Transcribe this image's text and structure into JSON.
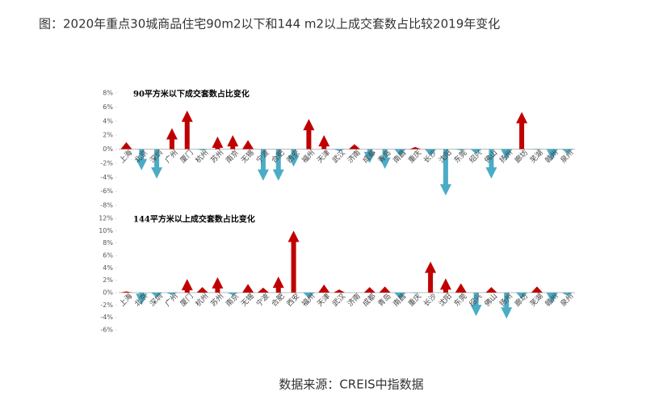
{
  "title": "图：2020年重点30城商品住宅90m2以下和144 m2以上成交套数占比较2019年变化",
  "source": "数据来源：CREIS中指数据",
  "chart_data": [
    {
      "type": "bar",
      "title": "90平方米以下成交套数占比变化",
      "categories": [
        "上海",
        "北京",
        "深圳",
        "广州",
        "厦门",
        "杭州",
        "苏州",
        "南京",
        "无锡",
        "宁波",
        "合肥",
        "西安",
        "福州",
        "天津",
        "武汉",
        "济南",
        "成都",
        "青岛",
        "南昌",
        "重庆",
        "长沙",
        "沈阳",
        "东莞",
        "绍兴",
        "佛山",
        "扬州",
        "廊坊",
        "芜湖",
        "赣州",
        "泉州"
      ],
      "values": [
        1.0,
        -3.0,
        -4.2,
        3.0,
        5.5,
        -0.2,
        1.8,
        2.0,
        1.3,
        -4.5,
        -4.5,
        -2.5,
        4.3,
        2.0,
        -0.3,
        0.7,
        -2.0,
        -2.8,
        -1.0,
        0.3,
        -1.0,
        -6.6,
        -0.2,
        -0.7,
        -4.2,
        -1.6,
        5.3,
        -0.1,
        -1.6,
        -0.6
      ],
      "ylim": [
        -8,
        8
      ],
      "yticks": [
        {
          "value": -8,
          "label": "-8%"
        },
        {
          "value": -6,
          "label": "-6%"
        },
        {
          "value": -4,
          "label": "-4%"
        },
        {
          "value": -2,
          "label": "-2%"
        },
        {
          "value": 0,
          "label": "0%"
        },
        {
          "value": 2,
          "label": "2%"
        },
        {
          "value": 4,
          "label": "4%"
        },
        {
          "value": 6,
          "label": "6%"
        },
        {
          "value": 8,
          "label": "8%"
        }
      ],
      "up_color": "#c00000",
      "down_color": "#4bacc6"
    },
    {
      "type": "bar",
      "title": "144平方米以上成交套数占比变化",
      "categories": [
        "上海",
        "北京",
        "深圳",
        "广州",
        "厦门",
        "杭州",
        "苏州",
        "南京",
        "无锡",
        "宁波",
        "合肥",
        "西安",
        "福州",
        "天津",
        "武汉",
        "济南",
        "成都",
        "青岛",
        "南昌",
        "重庆",
        "长沙",
        "沈阳",
        "东莞",
        "绍兴",
        "佛山",
        "扬州",
        "廊坊",
        "芜湖",
        "赣州",
        "泉州"
      ],
      "values": [
        0.2,
        -2.0,
        -0.8,
        -0.4,
        2.2,
        0.9,
        2.5,
        -0.4,
        1.4,
        0.8,
        2.6,
        10.0,
        -0.9,
        1.3,
        0.5,
        0,
        0.9,
        1.0,
        -1.1,
        -0.1,
        5.0,
        2.3,
        1.5,
        -3.8,
        0.9,
        -4.2,
        -1.0,
        1.0,
        -1.8,
        -0.5
      ],
      "ylim": [
        -6,
        12
      ],
      "yticks": [
        {
          "value": -6,
          "label": "-6%"
        },
        {
          "value": -4,
          "label": "-4%"
        },
        {
          "value": -2,
          "label": "-2%"
        },
        {
          "value": 0,
          "label": "0%"
        },
        {
          "value": 2,
          "label": "2%"
        },
        {
          "value": 4,
          "label": "4%"
        },
        {
          "value": 6,
          "label": "6%"
        },
        {
          "value": 8,
          "label": "8%"
        },
        {
          "value": 10,
          "label": "10%"
        },
        {
          "value": 12,
          "label": "12%"
        }
      ],
      "up_color": "#c00000",
      "down_color": "#4bacc6"
    }
  ]
}
